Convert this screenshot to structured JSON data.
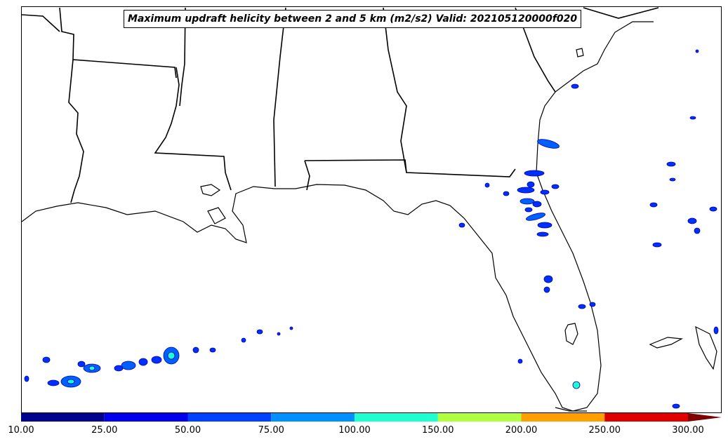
{
  "title": "Maximum updraft helicity between 2 and 5 km (m2/s2) Valid: 202105120000f020",
  "colorbar": {
    "ticks": [
      "10.00",
      "25.00",
      "50.00",
      "75.00",
      "100.00",
      "150.00",
      "200.00",
      "250.00",
      "300.00"
    ],
    "colors": [
      "#00008f",
      "#0000ee",
      "#0040ff",
      "#0090ff",
      "#20ffd0",
      "#b0ff40",
      "#ffa000",
      "#e00000",
      "#800000"
    ]
  },
  "map": {
    "region": "Gulf Coast / Florida",
    "background": "#ffffff",
    "line_color": "#000000"
  }
}
